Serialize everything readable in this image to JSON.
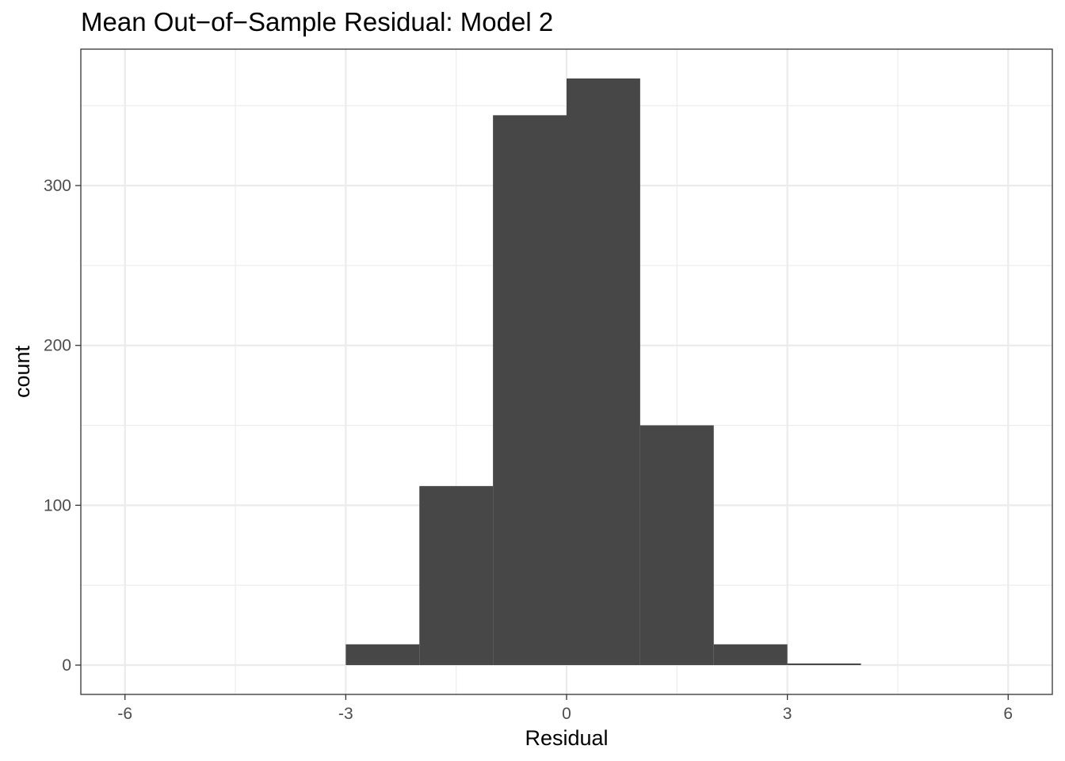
{
  "chart_data": {
    "type": "bar",
    "title": "Mean Out−of−Sample Residual: Model 2",
    "xlabel": "Residual",
    "ylabel": "count",
    "bins": [
      {
        "x0": -3,
        "x1": -2,
        "count": 13
      },
      {
        "x0": -2,
        "x1": -1,
        "count": 112
      },
      {
        "x0": -1,
        "x1": 0,
        "count": 344
      },
      {
        "x0": 0,
        "x1": 1,
        "count": 367
      },
      {
        "x0": 1,
        "x1": 2,
        "count": 150
      },
      {
        "x0": 2,
        "x1": 3,
        "count": 13
      },
      {
        "x0": 3,
        "x1": 4,
        "count": 1
      }
    ],
    "xlim": [
      -6.6,
      6.6
    ],
    "ylim": [
      -18.35,
      385.35
    ],
    "x_ticks": [
      -6,
      -3,
      0,
      3,
      6
    ],
    "x_minor_ticks": [
      -4.5,
      -1.5,
      1.5,
      4.5
    ],
    "y_ticks": [
      0,
      100,
      200,
      300
    ],
    "y_minor_ticks": [
      50,
      150,
      250,
      350
    ],
    "grid": true,
    "bar_color": "#474747",
    "grid_color": "#ebebeb",
    "panel_border_color": "#333333"
  }
}
